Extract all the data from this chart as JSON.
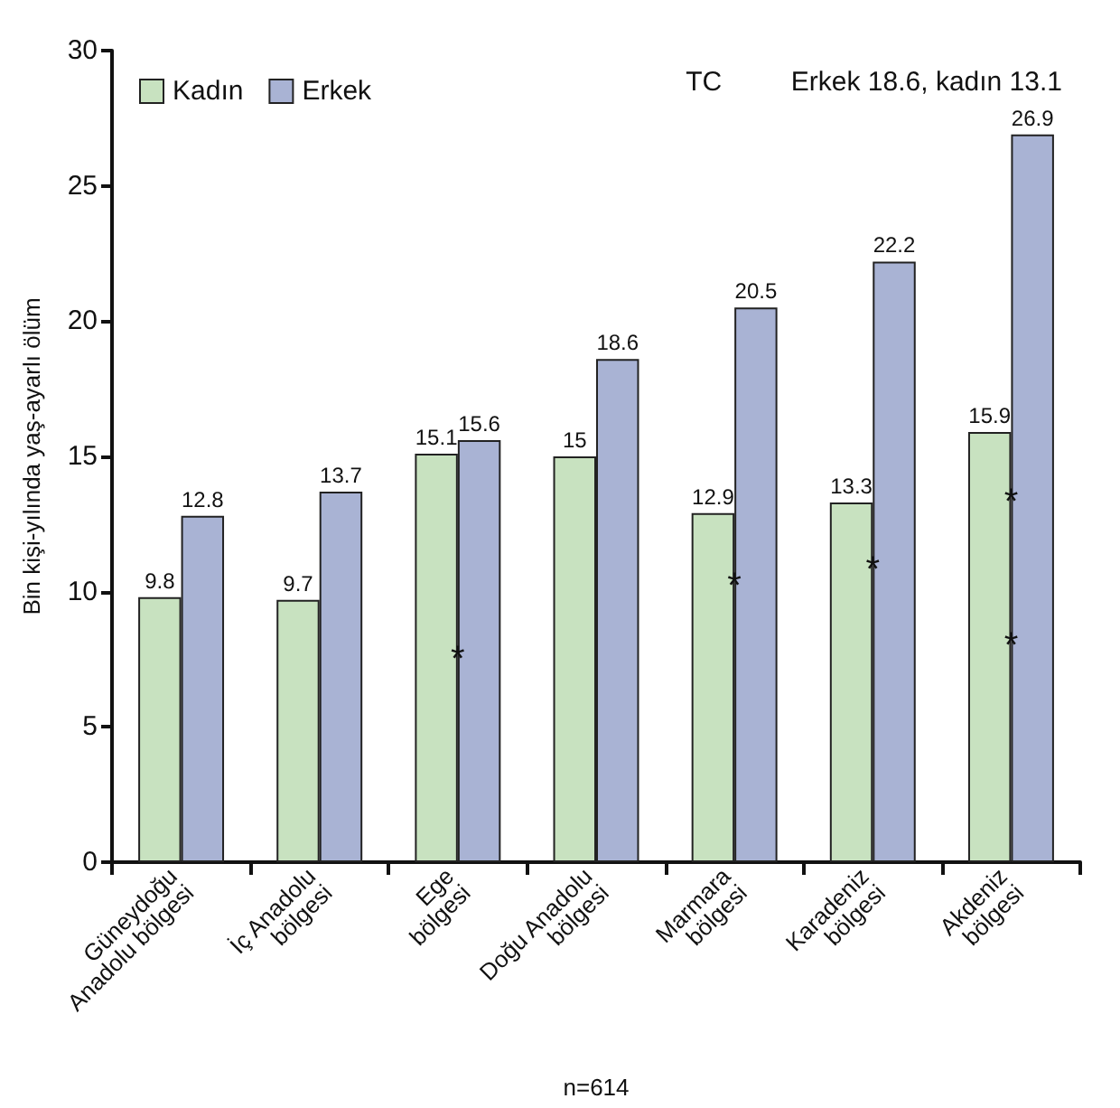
{
  "chart_data": {
    "type": "bar",
    "ylabel": "Bin kişi-yılında yaş-ayarlı ölüm",
    "xlabel": "n=614",
    "categories": [
      "Güneydoğu Anadolu bölgesi",
      "İç Anadolu bölgesi",
      "Ege bölgesi",
      "Doğu Anadolu bölgesi",
      "Marmara bölgesi",
      "Karadeniz bölgesi",
      "Akdeniz bölgesi"
    ],
    "series": [
      {
        "name": "Kadın",
        "color": "#c8e2c0",
        "values": [
          9.8,
          9.7,
          15.1,
          15,
          12.9,
          13.3,
          15.9
        ]
      },
      {
        "name": "Erkek",
        "color": "#a9b3d4",
        "values": [
          12.8,
          13.7,
          15.6,
          18.6,
          20.5,
          22.2,
          26.9
        ]
      }
    ],
    "ylim": [
      0,
      30
    ],
    "yticks": [
      0,
      5,
      10,
      15,
      20,
      25,
      30
    ],
    "grid": false,
    "legend": "top left",
    "data_labels": true,
    "annotations": [
      "TC",
      "Erkek 18.6, kadın 13.1",
      {
        "text": "*",
        "x": "Ege bölgesi",
        "y": 7.5
      },
      {
        "text": "*",
        "x": "Marmara bölgesi",
        "y": 10.2
      },
      {
        "text": "*",
        "x": "Karadeniz bölgesi",
        "y": 10.8
      },
      {
        "text": "*",
        "x": "Akdeniz bölgesi",
        "y": 8
      },
      {
        "text": "*",
        "x": "Akdeniz bölgesi",
        "y": 13.3
      }
    ]
  }
}
